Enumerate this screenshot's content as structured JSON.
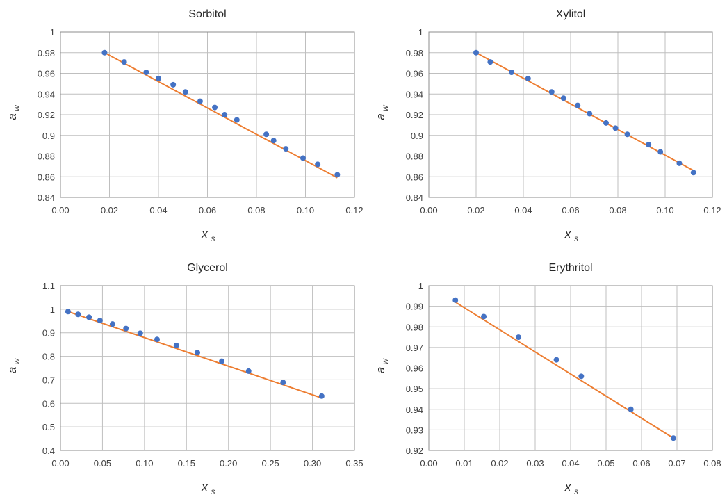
{
  "colors": {
    "points": "#4472c4",
    "fit": "#ed7d31",
    "grid": "#bfbfbf"
  },
  "chart_data": [
    {
      "type": "scatter",
      "title": "Sorbitol",
      "xlabel": "x",
      "xlabel_sub": "s",
      "ylabel": "a",
      "ylabel_sub": "w",
      "xlim": [
        0.0,
        0.12
      ],
      "ylim": [
        0.84,
        1.0
      ],
      "xticks": [
        "0.00",
        "0.02",
        "0.04",
        "0.06",
        "0.08",
        "0.10",
        "0.12"
      ],
      "yticks": [
        "0.84",
        "0.86",
        "0.88",
        "0.9",
        "0.92",
        "0.94",
        "0.96",
        "0.98",
        "1"
      ],
      "grid": true,
      "series": [
        {
          "kind": "points",
          "x": [
            0.018,
            0.026,
            0.035,
            0.04,
            0.046,
            0.051,
            0.057,
            0.063,
            0.067,
            0.072,
            0.084,
            0.087,
            0.092,
            0.099,
            0.105,
            0.113
          ],
          "y": [
            0.98,
            0.971,
            0.961,
            0.955,
            0.949,
            0.942,
            0.933,
            0.927,
            0.92,
            0.915,
            0.901,
            0.895,
            0.887,
            0.878,
            0.872,
            0.862
          ]
        },
        {
          "kind": "fit",
          "x": [
            0.018,
            0.113
          ],
          "y": [
            0.98,
            0.859
          ]
        }
      ]
    },
    {
      "type": "scatter",
      "title": "Xylitol",
      "xlabel": "x",
      "xlabel_sub": "s",
      "ylabel": "a",
      "ylabel_sub": "w",
      "xlim": [
        0.0,
        0.12
      ],
      "ylim": [
        0.84,
        1.0
      ],
      "xticks": [
        "0.00",
        "0.02",
        "0.04",
        "0.06",
        "0.08",
        "0.10",
        "0.12"
      ],
      "yticks": [
        "0.84",
        "0.86",
        "0.88",
        "0.9",
        "0.92",
        "0.94",
        "0.96",
        "0.98",
        "1"
      ],
      "grid": true,
      "series": [
        {
          "kind": "points",
          "x": [
            0.02,
            0.026,
            0.035,
            0.042,
            0.052,
            0.057,
            0.063,
            0.068,
            0.075,
            0.079,
            0.084,
            0.093,
            0.098,
            0.106,
            0.112
          ],
          "y": [
            0.98,
            0.971,
            0.961,
            0.955,
            0.942,
            0.936,
            0.929,
            0.921,
            0.912,
            0.907,
            0.901,
            0.891,
            0.884,
            0.873,
            0.864
          ]
        },
        {
          "kind": "fit",
          "x": [
            0.02,
            0.112
          ],
          "y": [
            0.98,
            0.866
          ]
        }
      ]
    },
    {
      "type": "scatter",
      "title": "Glycerol",
      "xlabel": "x",
      "xlabel_sub": "s",
      "ylabel": "a",
      "ylabel_sub": "w",
      "xlim": [
        0.0,
        0.35
      ],
      "ylim": [
        0.4,
        1.1
      ],
      "xticks": [
        "0.00",
        "0.05",
        "0.10",
        "0.15",
        "0.20",
        "0.25",
        "0.30",
        "0.35"
      ],
      "yticks": [
        "0.4",
        "0.5",
        "0.6",
        "0.7",
        "0.8",
        "0.9",
        "1",
        "1.1"
      ],
      "grid": true,
      "series": [
        {
          "kind": "points",
          "x": [
            0.009,
            0.021,
            0.034,
            0.047,
            0.062,
            0.078,
            0.095,
            0.115,
            0.138,
            0.163,
            0.192,
            0.224,
            0.265,
            0.311
          ],
          "y": [
            0.99,
            0.978,
            0.966,
            0.952,
            0.937,
            0.918,
            0.898,
            0.872,
            0.846,
            0.816,
            0.779,
            0.737,
            0.689,
            0.631
          ]
        },
        {
          "kind": "fit",
          "x": [
            0.009,
            0.311
          ],
          "y": [
            0.99,
            0.623
          ]
        }
      ]
    },
    {
      "type": "scatter",
      "title": "Erythritol",
      "xlabel": "x",
      "xlabel_sub": "s",
      "ylabel": "a",
      "ylabel_sub": "w",
      "xlim": [
        0.0,
        0.08
      ],
      "ylim": [
        0.92,
        1.0
      ],
      "xticks": [
        "0.00",
        "0.01",
        "0.02",
        "0.03",
        "0.04",
        "0.05",
        "0.06",
        "0.07",
        "0.08"
      ],
      "yticks": [
        "0.92",
        "0.93",
        "0.94",
        "0.95",
        "0.96",
        "0.97",
        "0.98",
        "0.99",
        "1"
      ],
      "grid": true,
      "series": [
        {
          "kind": "points",
          "x": [
            0.0075,
            0.0155,
            0.0253,
            0.036,
            0.043,
            0.057,
            0.069
          ],
          "y": [
            0.993,
            0.985,
            0.975,
            0.964,
            0.956,
            0.94,
            0.926
          ]
        },
        {
          "kind": "fit",
          "x": [
            0.0075,
            0.069
          ],
          "y": [
            0.992,
            0.926
          ]
        }
      ]
    }
  ]
}
